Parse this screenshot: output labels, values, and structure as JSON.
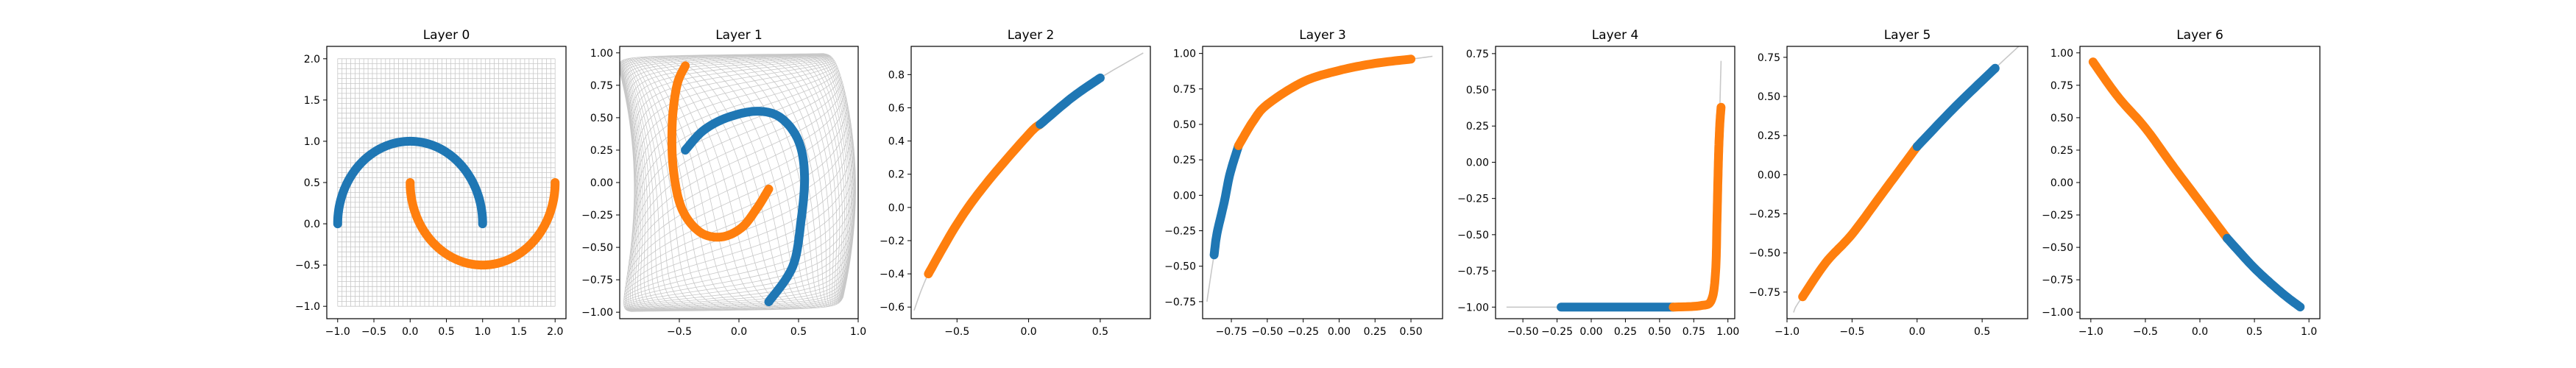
{
  "figure": {
    "panel_count": 7
  },
  "colors": {
    "series_0": "#1f77b4",
    "series_1": "#ff7f0e",
    "grid_lines": "#c8c8c8",
    "axes": "#000000"
  },
  "chart_data": [
    {
      "type": "scatter",
      "title": "Layer 0",
      "xlim": [
        -1.15,
        2.15
      ],
      "ylim": [
        -1.15,
        2.15
      ],
      "xticks": [
        -1.0,
        -0.5,
        0.0,
        0.5,
        1.0,
        1.5,
        2.0
      ],
      "xtick_labels": [
        "−1.0",
        "−0.5",
        "0.0",
        "0.5",
        "1.0",
        "1.5",
        "2.0"
      ],
      "yticks": [
        -1.0,
        -0.5,
        0.0,
        0.5,
        1.0,
        1.5,
        2.0
      ],
      "ytick_labels": [
        "−1.0",
        "−0.5",
        "0.0",
        "0.5",
        "1.0",
        "1.5",
        "2.0"
      ],
      "grid": "coordinate mesh overlay",
      "grid_range": {
        "x": [
          -1.0,
          2.0
        ],
        "y": [
          -1.0,
          2.0
        ]
      },
      "series": [
        {
          "color": "#1f77b4",
          "shape": "upper half circle, center (0, 0), radius 1, x from -1 to 1, peak y = 1.0"
        },
        {
          "color": "#ff7f0e",
          "shape": "lower half circle, center (1, 0.5), radius 1, x from 0 to 2, bottom y = -0.5"
        }
      ]
    },
    {
      "type": "scatter",
      "title": "Layer 1",
      "xlim": [
        -1.0,
        1.0
      ],
      "ylim": [
        -1.05,
        1.05
      ],
      "xticks": [
        -0.5,
        0.0,
        0.5,
        1.0
      ],
      "xtick_labels": [
        "−0.5",
        "0.0",
        "0.5",
        "1.0"
      ],
      "yticks": [
        -1.0,
        -0.75,
        -0.5,
        -0.25,
        0.0,
        0.25,
        0.5,
        0.75,
        1.0
      ],
      "ytick_labels": [
        "−1.00",
        "−0.75",
        "−0.50",
        "−0.25",
        "0.00",
        "0.25",
        "0.50",
        "0.75",
        "1.00"
      ],
      "grid": "warped coordinate mesh overlay",
      "series": [
        {
          "color": "#1f77b4",
          "shape": "spiral arc from (-0.45, 0.25) up through (0.2, 0.55) to (0.52, 0.3), down to (0.25, -0.92)"
        },
        {
          "color": "#ff7f0e",
          "shape": "spiral arc from (-0.45, 0.9) down the left side to (-0.2, -0.42), ending at (0.25, -0.05)"
        }
      ]
    },
    {
      "type": "line",
      "title": "Layer 2",
      "xlim": [
        -0.82,
        0.85
      ],
      "ylim": [
        -0.67,
        0.97
      ],
      "xticks": [
        -0.5,
        0.0,
        0.5
      ],
      "xtick_labels": [
        "−0.5",
        "0.0",
        "0.5"
      ],
      "yticks": [
        -0.6,
        -0.4,
        -0.2,
        0.0,
        0.2,
        0.4,
        0.6,
        0.8
      ],
      "ytick_labels": [
        "−0.6",
        "−0.4",
        "−0.2",
        "0.0",
        "0.2",
        "0.4",
        "0.6",
        "0.8"
      ],
      "manifold": [
        [
          -0.8,
          -0.62
        ],
        [
          -0.7,
          -0.4
        ],
        [
          -0.5,
          -0.1
        ],
        [
          -0.3,
          0.14
        ],
        [
          0.0,
          0.44
        ],
        [
          0.3,
          0.66
        ],
        [
          0.5,
          0.78
        ],
        [
          0.8,
          0.93
        ]
      ],
      "series": [
        {
          "color": "#ff7f0e",
          "x_range": [
            -0.7,
            0.08
          ],
          "points": [
            [
              -0.7,
              -0.4
            ],
            [
              -0.5,
              -0.1
            ],
            [
              -0.3,
              0.14
            ],
            [
              0.0,
              0.44
            ],
            [
              0.08,
              0.5
            ]
          ]
        },
        {
          "color": "#1f77b4",
          "x_range": [
            0.08,
            0.5
          ],
          "points": [
            [
              0.08,
              0.5
            ],
            [
              0.3,
              0.66
            ],
            [
              0.5,
              0.78
            ]
          ]
        }
      ]
    },
    {
      "type": "line",
      "title": "Layer 3",
      "xlim": [
        -0.95,
        0.72
      ],
      "ylim": [
        -0.87,
        1.05
      ],
      "xticks": [
        -0.75,
        -0.5,
        -0.25,
        0.0,
        0.25,
        0.5
      ],
      "xtick_labels": [
        "−0.75",
        "−0.50",
        "−0.25",
        "0.00",
        "0.25",
        "0.50"
      ],
      "yticks": [
        -0.75,
        -0.5,
        -0.25,
        0.0,
        0.25,
        0.5,
        0.75,
        1.0
      ],
      "ytick_labels": [
        "−0.75",
        "−0.50",
        "−0.25",
        "0.00",
        "0.25",
        "0.50",
        "0.75",
        "1.00"
      ],
      "manifold": [
        [
          -0.92,
          -0.75
        ],
        [
          -0.87,
          -0.42
        ],
        [
          -0.8,
          -0.05
        ],
        [
          -0.7,
          0.35
        ],
        [
          -0.5,
          0.64
        ],
        [
          -0.25,
          0.8
        ],
        [
          0.0,
          0.88
        ],
        [
          0.25,
          0.93
        ],
        [
          0.5,
          0.96
        ],
        [
          0.65,
          0.98
        ]
      ],
      "series": [
        {
          "color": "#1f77b4",
          "points": [
            [
              -0.87,
              -0.42
            ],
            [
              -0.85,
              -0.27
            ],
            [
              -0.8,
              -0.05
            ],
            [
              -0.76,
              0.15
            ],
            [
              -0.7,
              0.35
            ]
          ]
        },
        {
          "color": "#ff7f0e",
          "points": [
            [
              -0.7,
              0.35
            ],
            [
              -0.6,
              0.52
            ],
            [
              -0.5,
              0.64
            ],
            [
              -0.25,
              0.8
            ],
            [
              0.0,
              0.88
            ],
            [
              0.25,
              0.93
            ],
            [
              0.5,
              0.96
            ]
          ]
        }
      ]
    },
    {
      "type": "line",
      "title": "Layer 4",
      "xlim": [
        -0.7,
        1.05
      ],
      "ylim": [
        -1.08,
        0.8
      ],
      "xticks": [
        -0.5,
        -0.25,
        0.0,
        0.25,
        0.5,
        0.75,
        1.0
      ],
      "xtick_labels": [
        "−0.50",
        "−0.25",
        "0.00",
        "0.25",
        "0.50",
        "0.75",
        "1.00"
      ],
      "yticks": [
        -1.0,
        -0.75,
        -0.5,
        -0.25,
        0.0,
        0.25,
        0.5,
        0.75
      ],
      "ytick_labels": [
        "−1.00",
        "−0.75",
        "−0.50",
        "−0.25",
        "0.00",
        "0.25",
        "0.50",
        "0.75"
      ],
      "manifold": [
        [
          -0.62,
          -1.0
        ],
        [
          -0.22,
          -1.0
        ],
        [
          0.6,
          -1.0
        ],
        [
          0.85,
          -0.98
        ],
        [
          0.9,
          -0.9
        ],
        [
          0.92,
          -0.5
        ],
        [
          0.93,
          0.0
        ],
        [
          0.94,
          0.35
        ],
        [
          0.95,
          0.7
        ]
      ],
      "series": [
        {
          "color": "#1f77b4",
          "points": [
            [
              -0.22,
              -1.0
            ],
            [
              0.0,
              -1.0
            ],
            [
              0.3,
              -1.0
            ],
            [
              0.6,
              -1.0
            ]
          ]
        },
        {
          "color": "#ff7f0e",
          "points": [
            [
              0.6,
              -1.0
            ],
            [
              0.8,
              -0.99
            ],
            [
              0.88,
              -0.95
            ],
            [
              0.91,
              -0.75
            ],
            [
              0.92,
              -0.4
            ],
            [
              0.93,
              0.0
            ],
            [
              0.94,
              0.25
            ],
            [
              0.95,
              0.38
            ]
          ]
        }
      ]
    },
    {
      "type": "line",
      "title": "Layer 5",
      "xlim": [
        -1.0,
        0.85
      ],
      "ylim": [
        -0.92,
        0.82
      ],
      "xticks": [
        -1.0,
        -0.5,
        0.0,
        0.5
      ],
      "xtick_labels": [
        "−1.0",
        "−0.5",
        "0.0",
        "0.5"
      ],
      "yticks": [
        -0.75,
        -0.5,
        -0.25,
        0.0,
        0.25,
        0.5,
        0.75
      ],
      "ytick_labels": [
        "−0.75",
        "−0.50",
        "−0.25",
        "0.00",
        "0.25",
        "0.50",
        "0.75"
      ],
      "manifold": [
        [
          -0.95,
          -0.88
        ],
        [
          -0.88,
          -0.78
        ],
        [
          -0.5,
          -0.38
        ],
        [
          0.0,
          0.18
        ],
        [
          0.3,
          0.44
        ],
        [
          0.6,
          0.68
        ],
        [
          0.82,
          0.85
        ]
      ],
      "series": [
        {
          "color": "#ff7f0e",
          "points": [
            [
              -0.88,
              -0.78
            ],
            [
              -0.7,
              -0.56
            ],
            [
              -0.5,
              -0.38
            ],
            [
              -0.25,
              -0.1
            ],
            [
              0.0,
              0.18
            ]
          ]
        },
        {
          "color": "#1f77b4",
          "points": [
            [
              0.0,
              0.18
            ],
            [
              0.3,
              0.44
            ],
            [
              0.6,
              0.68
            ]
          ]
        }
      ]
    },
    {
      "type": "line",
      "title": "Layer 6",
      "xlim": [
        -1.1,
        1.1
      ],
      "ylim": [
        -1.05,
        1.05
      ],
      "xticks": [
        -1.0,
        -0.5,
        0.0,
        0.5,
        1.0
      ],
      "xtick_labels": [
        "−1.0",
        "−0.5",
        "0.0",
        "0.5",
        "1.0"
      ],
      "yticks": [
        -1.0,
        -0.75,
        -0.5,
        -0.25,
        0.0,
        0.25,
        0.5,
        0.75,
        1.0
      ],
      "ytick_labels": [
        "−1.00",
        "−0.75",
        "−0.50",
        "−0.25",
        "0.00",
        "0.25",
        "0.50",
        "0.75",
        "1.00"
      ],
      "manifold": [
        [
          -0.98,
          0.95
        ],
        [
          -0.5,
          0.42
        ],
        [
          0.0,
          -0.15
        ],
        [
          0.25,
          -0.43
        ],
        [
          0.5,
          -0.66
        ],
        [
          0.92,
          -0.96
        ]
      ],
      "series": [
        {
          "color": "#ff7f0e",
          "points": [
            [
              -0.98,
              0.93
            ],
            [
              -0.75,
              0.66
            ],
            [
              -0.5,
              0.42
            ],
            [
              -0.25,
              0.13
            ],
            [
              0.0,
              -0.15
            ],
            [
              0.25,
              -0.43
            ]
          ]
        },
        {
          "color": "#1f77b4",
          "points": [
            [
              0.25,
              -0.43
            ],
            [
              0.5,
              -0.66
            ],
            [
              0.75,
              -0.85
            ],
            [
              0.92,
              -0.96
            ]
          ]
        }
      ]
    }
  ]
}
